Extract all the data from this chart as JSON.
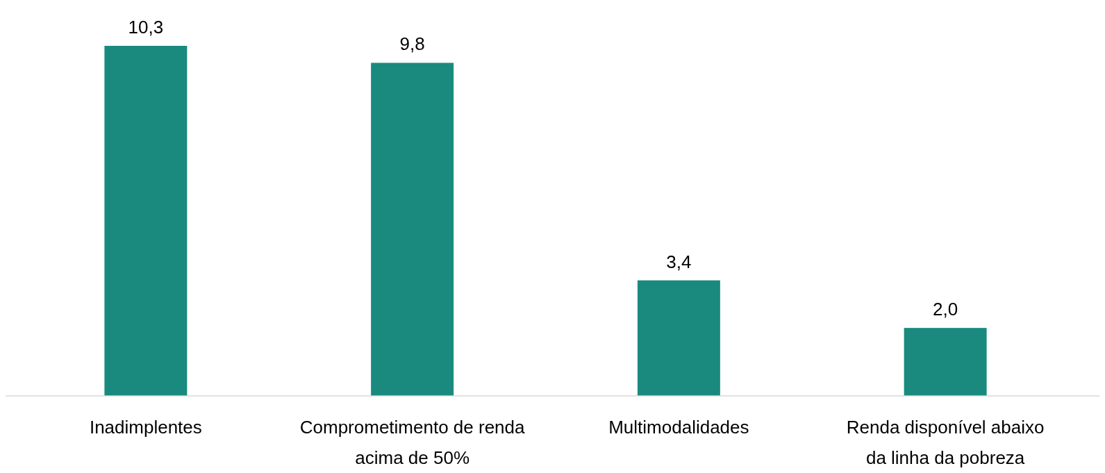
{
  "chart_data": {
    "type": "bar",
    "categories": [
      "Inadimplentes",
      "Comprometimento de renda acima de 50%",
      "Multimodalidades",
      "Renda disponível abaixo da linha da pobreza"
    ],
    "values": [
      10.3,
      9.8,
      3.4,
      2.0
    ],
    "value_labels": [
      "10,3",
      "9,8",
      "3,4",
      "2,0"
    ],
    "color": "#1a8a7e"
  }
}
